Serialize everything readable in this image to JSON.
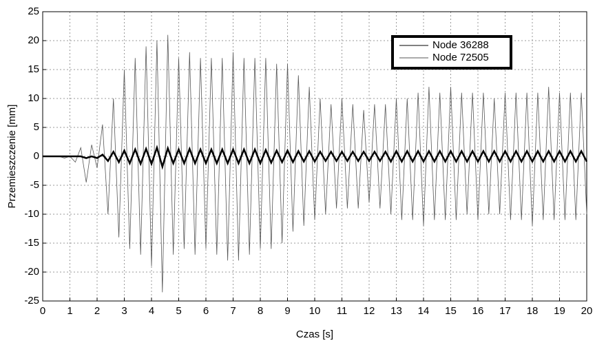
{
  "chart_data": {
    "type": "line",
    "xlabel": "Czas [s]",
    "ylabel": "Przemieszczenie [mm]",
    "x": [
      0,
      0.2,
      0.4,
      0.6,
      0.8,
      1,
      1.2,
      1.4,
      1.6,
      1.8,
      2,
      2.2,
      2.4,
      2.6,
      2.8,
      3,
      3.2,
      3.4,
      3.6,
      3.8,
      4,
      4.2,
      4.4,
      4.6,
      4.8,
      5,
      5.2,
      5.4,
      5.6,
      5.8,
      6,
      6.2,
      6.4,
      6.6,
      6.8,
      7,
      7.2,
      7.4,
      7.6,
      7.8,
      8,
      8.2,
      8.4,
      8.6,
      8.8,
      9,
      9.2,
      9.4,
      9.6,
      9.8,
      10,
      10.2,
      10.4,
      10.6,
      10.8,
      11,
      11.2,
      11.4,
      11.6,
      11.8,
      12,
      12.2,
      12.4,
      12.6,
      12.8,
      13,
      13.2,
      13.4,
      13.6,
      13.8,
      14,
      14.2,
      14.4,
      14.6,
      14.8,
      15,
      15.2,
      15.4,
      15.6,
      15.8,
      16,
      16.2,
      16.4,
      16.6,
      16.8,
      17,
      17.2,
      17.4,
      17.6,
      17.8,
      18,
      18.2,
      18.4,
      18.6,
      18.8,
      19,
      19.2,
      19.4,
      19.6,
      19.8,
      20
    ],
    "series": [
      {
        "name": "Node 36288",
        "color": "#000000",
        "values": [
          0,
          0,
          0,
          0,
          0,
          0,
          0,
          0,
          -0.3,
          0,
          -0.3,
          0.3,
          -0.8,
          0.8,
          -1,
          1,
          -1.2,
          1.2,
          -1.3,
          1.3,
          -1.3,
          1.5,
          -1.8,
          1.4,
          -1.2,
          1.2,
          -1.2,
          1.3,
          -1.2,
          1.2,
          -1.2,
          1.2,
          -1.2,
          1.2,
          -1.2,
          1.2,
          -1.2,
          1.2,
          -1.2,
          1.2,
          -1.2,
          1.1,
          -1.1,
          1,
          -1,
          1,
          -1,
          0.9,
          -0.9,
          0.9,
          -0.9,
          0.8,
          -0.8,
          0.8,
          -0.8,
          0.8,
          -0.8,
          0.8,
          -0.8,
          0.8,
          -0.8,
          0.8,
          -0.8,
          0.8,
          -0.9,
          0.9,
          -0.9,
          0.9,
          -0.9,
          0.9,
          -0.9,
          0.9,
          -0.9,
          0.9,
          -0.9,
          0.9,
          -0.9,
          0.9,
          -0.9,
          0.9,
          -0.9,
          0.9,
          -0.9,
          0.9,
          -0.9,
          0.9,
          -0.9,
          0.9,
          -0.9,
          0.9,
          -0.9,
          0.9,
          -0.9,
          0.9,
          -0.9,
          0.9,
          -0.9,
          0.9,
          -0.9,
          0.9,
          -0.9
        ]
      },
      {
        "name": "Node 72505",
        "color": "#555555",
        "values": [
          0,
          0,
          0,
          0,
          -0.3,
          0,
          -1,
          1.5,
          -4.5,
          2,
          -2,
          5.5,
          -10,
          10,
          -14,
          15,
          -16,
          17,
          -17,
          19,
          -19,
          20,
          -23.5,
          21,
          -17,
          17,
          -16,
          18,
          -17,
          17,
          -16,
          17,
          -17,
          17,
          -18,
          18,
          -18,
          17,
          -17,
          17,
          -16,
          17,
          -16,
          16,
          -15,
          16,
          -13,
          14,
          -12,
          12,
          -11,
          10,
          -10,
          9,
          -9,
          10,
          -9,
          9,
          -9,
          8,
          -8,
          9,
          -9,
          9,
          -10,
          10,
          -11,
          10,
          -11,
          11,
          -12,
          12,
          -11,
          11,
          -11,
          12,
          -11,
          11,
          -10,
          11,
          -11,
          11,
          -10,
          10,
          -10,
          11,
          -11,
          11,
          -11,
          11,
          -12,
          11,
          -11,
          12,
          -11,
          11,
          -11,
          11,
          -11,
          11,
          -10
        ]
      }
    ],
    "xlim": [
      0,
      20
    ],
    "xticks": [
      0,
      1,
      2,
      3,
      4,
      5,
      6,
      7,
      8,
      9,
      10,
      11,
      12,
      13,
      14,
      15,
      16,
      17,
      18,
      19,
      20
    ],
    "ylim": [
      -25,
      25
    ],
    "yticks": [
      -25,
      -20,
      -15,
      -10,
      -5,
      0,
      5,
      10,
      15,
      20,
      25
    ],
    "grid": true,
    "legend": "upper right"
  }
}
